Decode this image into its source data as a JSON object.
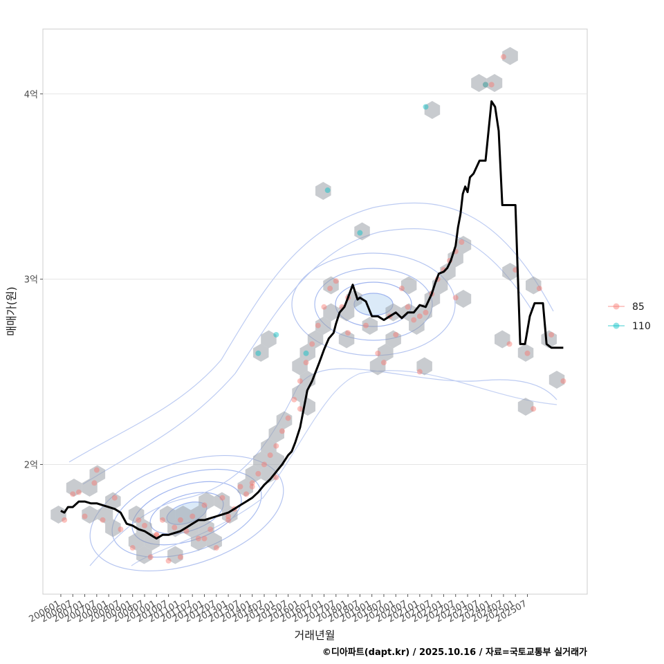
{
  "chart_data": {
    "type": "line",
    "title": "",
    "xlabel": "거래년월",
    "ylabel": "매매가(원)",
    "caption": "©디아파트(dapt.kr) / 2025.10.16 / 자료=국토교통부 실거래가",
    "x_ticks": [
      "200601",
      "200607",
      "200701",
      "200707",
      "200801",
      "200807",
      "200901",
      "200907",
      "201001",
      "201007",
      "201101",
      "201107",
      "201201",
      "201207",
      "201301",
      "201307",
      "201401",
      "201407",
      "201501",
      "201507",
      "201601",
      "201607",
      "201701",
      "201707",
      "201801",
      "201807",
      "201901",
      "201907",
      "202001",
      "202007",
      "202101",
      "202107",
      "202201",
      "202207",
      "202301",
      "202307",
      "202401",
      "202407",
      "202501",
      "202507"
    ],
    "x_range": [
      -1.5,
      44
    ],
    "y_ticks": [
      {
        "value": 2.0,
        "label": "2억"
      },
      {
        "value": 3.0,
        "label": "3억"
      },
      {
        "value": 4.0,
        "label": "4억"
      }
    ],
    "y_range": [
      1.3,
      4.35
    ],
    "colors": {
      "85": "#F8766D",
      "110": "#00BFC4",
      "line": "#000000",
      "hex": "#9aa1a8",
      "contour": "#6b8cff"
    },
    "legend": {
      "position": "right",
      "entries": [
        {
          "label": "85",
          "color": "#F8766D"
        },
        {
          "label": "110",
          "color": "#00BFC4"
        }
      ]
    },
    "series": [
      {
        "name": "median",
        "type": "line",
        "x": [
          0,
          0.3,
          0.6,
          1,
          1.5,
          2,
          2.5,
          3,
          3.5,
          4,
          4.5,
          5,
          5.5,
          6,
          6.5,
          7,
          7.5,
          8,
          8.5,
          9,
          9.5,
          10,
          10.5,
          11,
          11.5,
          12,
          12.5,
          13,
          13.5,
          14,
          14.5,
          15,
          15.5,
          16,
          16.5,
          17,
          17.5,
          18,
          18.5,
          19,
          19.3,
          19.6,
          20,
          20.3,
          20.6,
          21,
          21.3,
          21.6,
          22,
          22.4,
          22.8,
          23,
          23.3,
          23.7,
          24,
          24.4,
          24.8,
          25,
          25.5,
          26,
          26.5,
          27,
          27.5,
          28,
          28.5,
          29,
          29.5,
          30,
          30.5,
          31,
          31.3,
          31.6,
          32,
          32.3,
          32.6,
          33,
          33.2,
          33.4,
          33.6,
          33.8,
          34,
          34.2,
          34.5,
          35,
          35.5,
          36,
          36.3,
          36.6,
          36.9,
          37.2,
          37.5,
          38,
          38.4,
          38.8,
          39.2,
          39.6,
          40,
          40.3,
          40.6,
          41,
          41.5,
          42
        ],
        "y": [
          1.75,
          1.74,
          1.77,
          1.77,
          1.8,
          1.8,
          1.79,
          1.79,
          1.78,
          1.77,
          1.76,
          1.74,
          1.68,
          1.67,
          1.65,
          1.64,
          1.62,
          1.6,
          1.62,
          1.62,
          1.63,
          1.64,
          1.66,
          1.68,
          1.7,
          1.7,
          1.71,
          1.72,
          1.73,
          1.74,
          1.76,
          1.78,
          1.8,
          1.82,
          1.85,
          1.89,
          1.92,
          1.96,
          2.0,
          2.05,
          2.07,
          2.12,
          2.2,
          2.3,
          2.4,
          2.45,
          2.5,
          2.55,
          2.62,
          2.68,
          2.71,
          2.76,
          2.82,
          2.85,
          2.9,
          2.97,
          2.89,
          2.9,
          2.88,
          2.8,
          2.8,
          2.78,
          2.8,
          2.82,
          2.79,
          2.82,
          2.82,
          2.86,
          2.85,
          2.92,
          2.98,
          3.03,
          3.04,
          3.06,
          3.1,
          3.18,
          3.28,
          3.35,
          3.46,
          3.5,
          3.47,
          3.55,
          3.57,
          3.64,
          3.64,
          3.96,
          3.93,
          3.8,
          3.4,
          3.4,
          3.4,
          3.4,
          2.65,
          2.65,
          2.8,
          2.87,
          2.87,
          2.87,
          2.65,
          2.63,
          2.63,
          2.63
        ]
      },
      {
        "name": "85",
        "type": "scatter",
        "x": [
          0.3,
          1.5,
          2,
          2.8,
          3.5,
          4.5,
          5,
          6,
          6.5,
          7,
          7.5,
          8,
          8.5,
          9,
          9.5,
          10,
          10.5,
          11,
          11.5,
          12,
          12.5,
          13,
          13.5,
          14,
          14.5,
          15,
          15.5,
          16,
          16.5,
          17,
          17.5,
          18,
          18.5,
          19,
          19.5,
          20,
          20.5,
          21,
          21.5,
          22,
          22.5,
          23,
          23.5,
          24,
          25.5,
          26.5,
          27.5,
          28,
          28.5,
          29,
          29.5,
          30,
          30.5,
          31,
          31.5,
          32,
          32.5,
          33,
          33.5,
          36,
          37,
          38,
          39,
          40,
          41,
          42,
          1,
          3,
          8,
          10,
          12,
          14,
          16,
          18,
          20,
          24,
          27,
          30,
          33,
          35.5,
          37.5,
          39.5
        ],
        "y": [
          1.7,
          1.85,
          1.72,
          1.9,
          1.7,
          1.82,
          1.65,
          1.55,
          1.7,
          1.67,
          1.5,
          1.62,
          1.7,
          1.48,
          1.66,
          1.7,
          1.64,
          1.72,
          1.6,
          1.78,
          1.65,
          1.55,
          1.82,
          1.7,
          1.76,
          1.88,
          1.84,
          1.9,
          1.95,
          2.0,
          2.05,
          2.1,
          2.18,
          2.25,
          2.35,
          2.45,
          2.55,
          2.65,
          2.75,
          2.85,
          2.95,
          2.99,
          2.85,
          2.9,
          2.75,
          2.6,
          2.8,
          2.7,
          2.95,
          2.85,
          2.78,
          2.8,
          2.82,
          2.92,
          3.0,
          3.05,
          3.1,
          3.15,
          3.2,
          4.05,
          4.2,
          3.05,
          2.6,
          2.95,
          2.7,
          2.45,
          1.84,
          1.97,
          1.62,
          1.5,
          1.6,
          1.72,
          1.88,
          1.93,
          2.3,
          2.71,
          2.55,
          2.5,
          2.9,
          4.05,
          2.65,
          2.3
        ],
        "color": "#F8766D"
      },
      {
        "name": "110",
        "type": "scatter",
        "x": [
          16.5,
          18,
          20.5,
          22.3,
          25,
          30.5,
          35.5
        ],
        "y": [
          2.6,
          2.7,
          2.6,
          3.48,
          3.25,
          3.93,
          4.05
        ],
        "color": "#00BFC4"
      }
    ]
  }
}
